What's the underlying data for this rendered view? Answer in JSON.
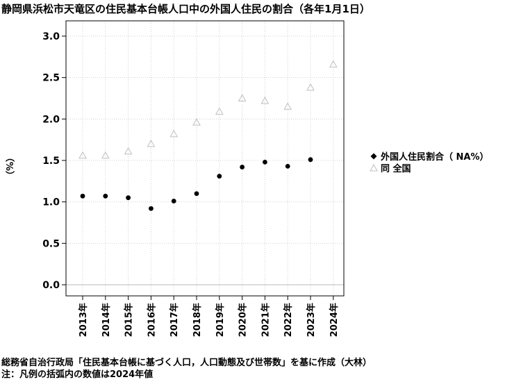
{
  "chart_data": {
    "type": "scatter",
    "title": "静岡県浜松市天竜区の住民基本台帳人口中の外国人住民の割合（各年1月1日）",
    "ylabel": "（%）",
    "categories": [
      "2013年",
      "2014年",
      "2015年",
      "2016年",
      "2017年",
      "2018年",
      "2019年",
      "2020年",
      "2021年",
      "2022年",
      "2023年",
      "2024年"
    ],
    "ylim": [
      0,
      3.0
    ],
    "yticks": [
      "0.0",
      "0.5",
      "1.0",
      "1.5",
      "2.0",
      "2.5",
      "3.0"
    ],
    "grid": true,
    "legend_position": "right",
    "series": [
      {
        "name": "外国人住民割合（ NA%）",
        "marker": "filled-circle",
        "color": "#000000",
        "values": [
          1.07,
          1.07,
          1.05,
          0.92,
          1.01,
          1.1,
          1.31,
          1.42,
          1.48,
          1.43,
          1.51,
          null
        ]
      },
      {
        "name": "同 全国",
        "marker": "open-triangle",
        "color": "#bfbfbf",
        "values": [
          1.56,
          1.56,
          1.61,
          1.7,
          1.82,
          1.96,
          2.09,
          2.25,
          2.22,
          2.15,
          2.38,
          2.66
        ]
      }
    ]
  },
  "footer": {
    "source": "総務省自治行政局「住民基本台帳に基づく人口，人口動態及び世帯数」を基に作成（大林）",
    "note": "注：凡例の括弧内の数値は2024年値"
  }
}
